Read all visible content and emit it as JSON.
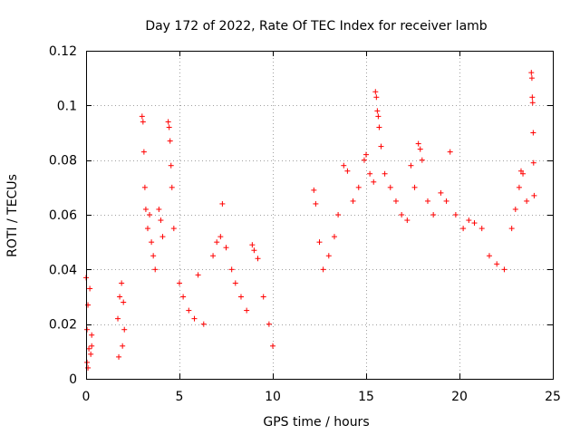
{
  "chart_data": {
    "type": "scatter",
    "title": "Day 172 of 2022, Rate Of TEC Index for receiver lamb",
    "xlabel": "GPS time / hours",
    "ylabel": "ROTI / TECUs",
    "xlim": [
      0,
      25
    ],
    "ylim": [
      0,
      0.12
    ],
    "x_ticks": [
      0,
      5,
      10,
      15,
      20,
      25
    ],
    "x_tick_labels": [
      "0",
      "5",
      "10",
      "15",
      "20",
      "25"
    ],
    "y_ticks": [
      0,
      0.02,
      0.04,
      0.06,
      0.08,
      0.1,
      0.12
    ],
    "y_tick_labels": [
      "0",
      "0.02",
      "0.04",
      "0.06",
      "0.08",
      "0.1",
      "0.12"
    ],
    "grid": true,
    "marker": "plus",
    "color": "#ff0000",
    "series": [
      {
        "points": [
          [
            0.0,
            0.037
          ],
          [
            0.05,
            0.018
          ],
          [
            0.1,
            0.027
          ],
          [
            0.15,
            0.011
          ],
          [
            0.2,
            0.033
          ],
          [
            0.3,
            0.016
          ],
          [
            0.05,
            0.006
          ],
          [
            0.25,
            0.009
          ],
          [
            0.1,
            0.004
          ],
          [
            0.3,
            0.012
          ],
          [
            1.7,
            0.022
          ],
          [
            1.8,
            0.03
          ],
          [
            1.9,
            0.035
          ],
          [
            2.0,
            0.028
          ],
          [
            1.75,
            0.008
          ],
          [
            1.95,
            0.012
          ],
          [
            2.05,
            0.018
          ],
          [
            3.0,
            0.096
          ],
          [
            3.05,
            0.094
          ],
          [
            3.1,
            0.083
          ],
          [
            3.15,
            0.07
          ],
          [
            3.2,
            0.062
          ],
          [
            3.3,
            0.055
          ],
          [
            3.4,
            0.06
          ],
          [
            3.5,
            0.05
          ],
          [
            3.6,
            0.045
          ],
          [
            3.7,
            0.04
          ],
          [
            3.9,
            0.062
          ],
          [
            4.0,
            0.058
          ],
          [
            4.1,
            0.052
          ],
          [
            4.4,
            0.094
          ],
          [
            4.45,
            0.092
          ],
          [
            4.5,
            0.087
          ],
          [
            4.55,
            0.078
          ],
          [
            4.6,
            0.07
          ],
          [
            4.7,
            0.055
          ],
          [
            5.0,
            0.035
          ],
          [
            5.2,
            0.03
          ],
          [
            5.5,
            0.025
          ],
          [
            5.8,
            0.022
          ],
          [
            6.0,
            0.038
          ],
          [
            6.3,
            0.02
          ],
          [
            6.8,
            0.045
          ],
          [
            7.0,
            0.05
          ],
          [
            7.2,
            0.052
          ],
          [
            7.3,
            0.064
          ],
          [
            7.5,
            0.048
          ],
          [
            7.8,
            0.04
          ],
          [
            8.0,
            0.035
          ],
          [
            8.3,
            0.03
          ],
          [
            8.6,
            0.025
          ],
          [
            8.9,
            0.049
          ],
          [
            9.0,
            0.047
          ],
          [
            9.2,
            0.044
          ],
          [
            9.5,
            0.03
          ],
          [
            9.8,
            0.02
          ],
          [
            10.0,
            0.012
          ],
          [
            12.2,
            0.069
          ],
          [
            12.3,
            0.064
          ],
          [
            12.5,
            0.05
          ],
          [
            12.7,
            0.04
          ],
          [
            13.0,
            0.045
          ],
          [
            13.3,
            0.052
          ],
          [
            13.5,
            0.06
          ],
          [
            13.8,
            0.078
          ],
          [
            14.0,
            0.076
          ],
          [
            14.3,
            0.065
          ],
          [
            14.6,
            0.07
          ],
          [
            14.9,
            0.08
          ],
          [
            15.0,
            0.082
          ],
          [
            15.2,
            0.075
          ],
          [
            15.4,
            0.072
          ],
          [
            15.5,
            0.105
          ],
          [
            15.55,
            0.103
          ],
          [
            15.6,
            0.098
          ],
          [
            15.65,
            0.096
          ],
          [
            15.7,
            0.092
          ],
          [
            15.8,
            0.085
          ],
          [
            16.0,
            0.075
          ],
          [
            16.3,
            0.07
          ],
          [
            16.6,
            0.065
          ],
          [
            16.9,
            0.06
          ],
          [
            17.2,
            0.058
          ],
          [
            17.4,
            0.078
          ],
          [
            17.6,
            0.07
          ],
          [
            17.8,
            0.086
          ],
          [
            17.9,
            0.084
          ],
          [
            18.0,
            0.08
          ],
          [
            18.3,
            0.065
          ],
          [
            18.6,
            0.06
          ],
          [
            19.0,
            0.068
          ],
          [
            19.3,
            0.065
          ],
          [
            19.5,
            0.083
          ],
          [
            19.8,
            0.06
          ],
          [
            20.2,
            0.055
          ],
          [
            20.5,
            0.058
          ],
          [
            20.8,
            0.057
          ],
          [
            21.2,
            0.055
          ],
          [
            21.6,
            0.045
          ],
          [
            22.0,
            0.042
          ],
          [
            22.4,
            0.04
          ],
          [
            22.8,
            0.055
          ],
          [
            23.0,
            0.062
          ],
          [
            23.2,
            0.07
          ],
          [
            23.3,
            0.076
          ],
          [
            23.4,
            0.075
          ],
          [
            23.6,
            0.065
          ],
          [
            23.85,
            0.112
          ],
          [
            23.88,
            0.11
          ],
          [
            23.9,
            0.103
          ],
          [
            23.92,
            0.101
          ],
          [
            23.95,
            0.09
          ],
          [
            23.97,
            0.079
          ],
          [
            24.0,
            0.067
          ]
        ]
      }
    ]
  }
}
